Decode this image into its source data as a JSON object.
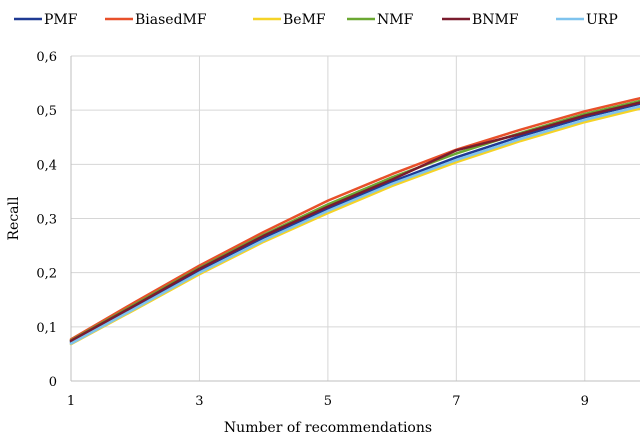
{
  "chart_data": {
    "type": "line",
    "title": "",
    "xlabel": "Number of recommendations",
    "ylabel": "Recall",
    "xlim": [
      1,
      10
    ],
    "ylim": [
      0,
      0.6
    ],
    "x_ticks": [
      1,
      3,
      5,
      7,
      9
    ],
    "x_tick_labels": [
      "1",
      "3",
      "5",
      "7",
      "9"
    ],
    "y_ticks": [
      0,
      0.1,
      0.2,
      0.3,
      0.4,
      0.5,
      0.6
    ],
    "y_tick_labels": [
      "0",
      "0,1",
      "0,2",
      "0,3",
      "0,4",
      "0,5",
      "0,6"
    ],
    "grid": true,
    "legend_position": "top",
    "x": [
      1,
      2,
      3,
      4,
      5,
      6,
      7,
      8,
      9,
      10
    ],
    "series": [
      {
        "name": "PMF",
        "color": "#1F3A93",
        "values": [
          0.072,
          0.138,
          0.205,
          0.265,
          0.318,
          0.368,
          0.413,
          0.452,
          0.487,
          0.516
        ]
      },
      {
        "name": "BiasedMF",
        "color": "#E8502A",
        "values": [
          0.077,
          0.146,
          0.213,
          0.275,
          0.333,
          0.382,
          0.427,
          0.464,
          0.498,
          0.526
        ]
      },
      {
        "name": "BeMF",
        "color": "#F5D327",
        "values": [
          0.068,
          0.132,
          0.197,
          0.257,
          0.31,
          0.36,
          0.404,
          0.443,
          0.478,
          0.507
        ]
      },
      {
        "name": "NMF",
        "color": "#6BA832",
        "values": [
          0.075,
          0.142,
          0.209,
          0.27,
          0.326,
          0.376,
          0.42,
          0.458,
          0.493,
          0.521
        ]
      },
      {
        "name": "BNMF",
        "color": "#7A1C2E",
        "values": [
          0.074,
          0.14,
          0.207,
          0.268,
          0.322,
          0.372,
          0.426,
          0.456,
          0.49,
          0.518
        ]
      },
      {
        "name": "URP",
        "color": "#7EC3EE",
        "values": [
          0.069,
          0.134,
          0.2,
          0.26,
          0.314,
          0.364,
          0.408,
          0.447,
          0.482,
          0.511
        ]
      }
    ]
  }
}
